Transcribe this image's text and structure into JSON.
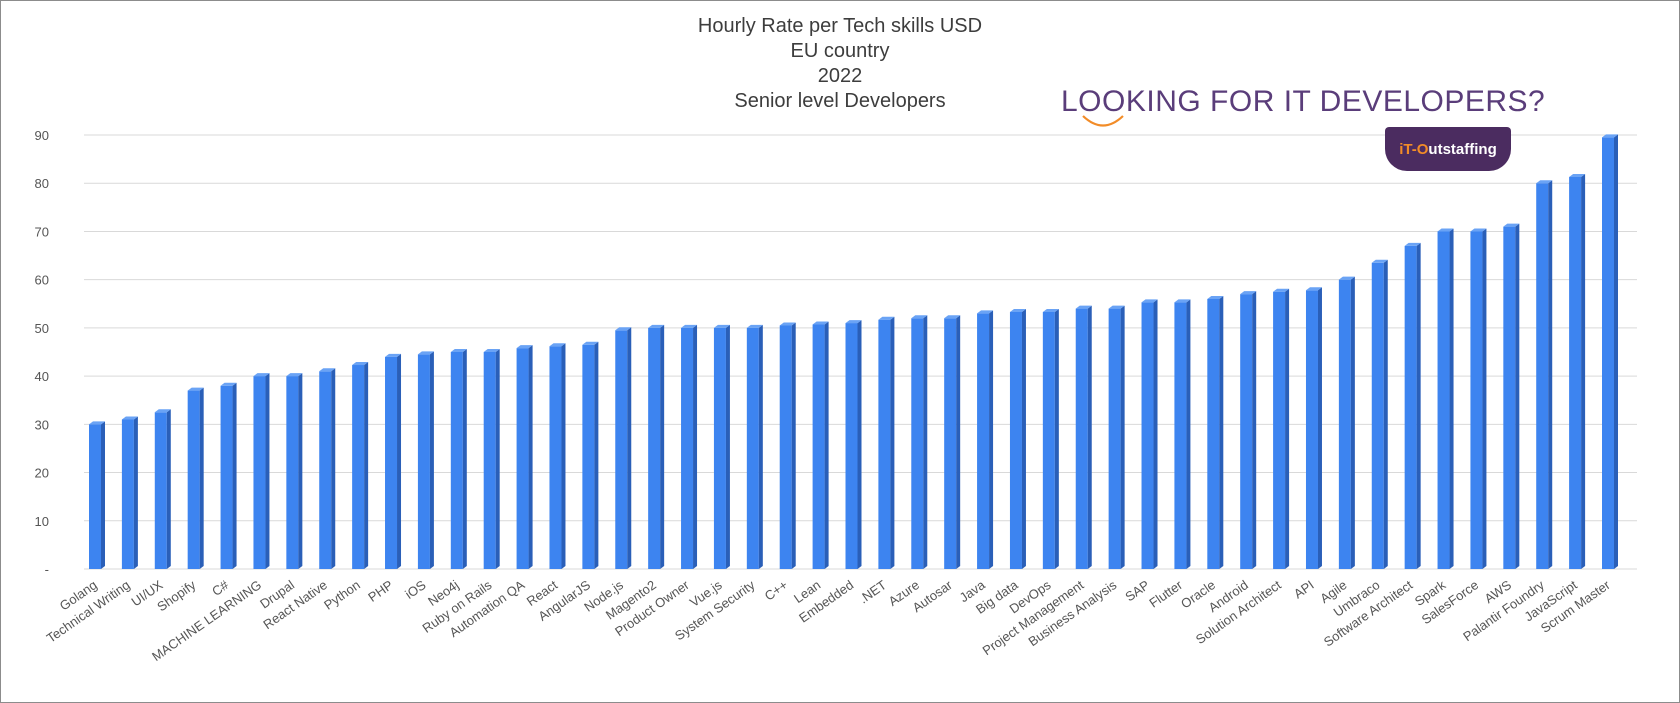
{
  "promo": {
    "text": "LOOKING FOR IT DEVELOPERS?",
    "brand_prefix": "iT-O",
    "brand_rest": "utstaffing",
    "text_color": "#5a3d7a",
    "badge_color": "#4b2c60",
    "accent_color": "#f28c28"
  },
  "chart_data": {
    "type": "bar",
    "title": [
      "Hourly Rate per Tech skills USD",
      "EU country",
      "2022",
      "Senior level Developers"
    ],
    "xlabel": "",
    "ylabel": "",
    "ylim": [
      0,
      90
    ],
    "yticks": [
      0,
      10,
      20,
      30,
      40,
      50,
      60,
      70,
      80,
      90
    ],
    "ytick_labels": [
      "-",
      "10",
      "20",
      "30",
      "40",
      "50",
      "60",
      "70",
      "80",
      "90"
    ],
    "grid": true,
    "legend": "none",
    "bar_color": "#3d84f0",
    "bar_side_color": "#2a5fb8",
    "categories": [
      "Golang",
      "Technical Writing",
      "UI/UX",
      "Shopify",
      "C#",
      "MACHINE LEARNING",
      "Drupal",
      "React Native",
      "Python",
      "PHP",
      "iOS",
      "Neo4j",
      "Ruby on Rails",
      "Automation QA",
      "React",
      "AngularJS",
      "Node.js",
      "Magento2",
      "Product Owner",
      "Vue.js",
      "System Security",
      "C++",
      "Lean",
      "Embedded",
      ".NET",
      "Azure",
      "Autosar",
      "Java",
      "Big data",
      "DevOps",
      "Project Management",
      "Business Analysis",
      "SAP",
      "Flutter",
      "Oracle",
      "Android",
      "Solution Architect",
      "API",
      "Agile",
      "Umbraco",
      "Software Architect",
      "Spark",
      "SalesForce",
      "AWS",
      "Palantir Foundry",
      "JavaScript",
      "Scrum Master"
    ],
    "values": [
      30,
      31,
      32.5,
      37,
      38,
      40,
      40,
      41,
      42.3,
      44,
      44.5,
      45,
      45,
      45.8,
      46.2,
      46.5,
      49.5,
      50,
      50,
      50,
      50,
      50.5,
      50.7,
      51,
      51.7,
      52,
      52,
      53,
      53.3,
      53.3,
      54,
      54,
      55.3,
      55.3,
      56,
      57,
      57.5,
      57.8,
      60,
      63.5,
      67,
      70,
      70,
      71,
      80,
      81.3,
      89.5
    ]
  }
}
